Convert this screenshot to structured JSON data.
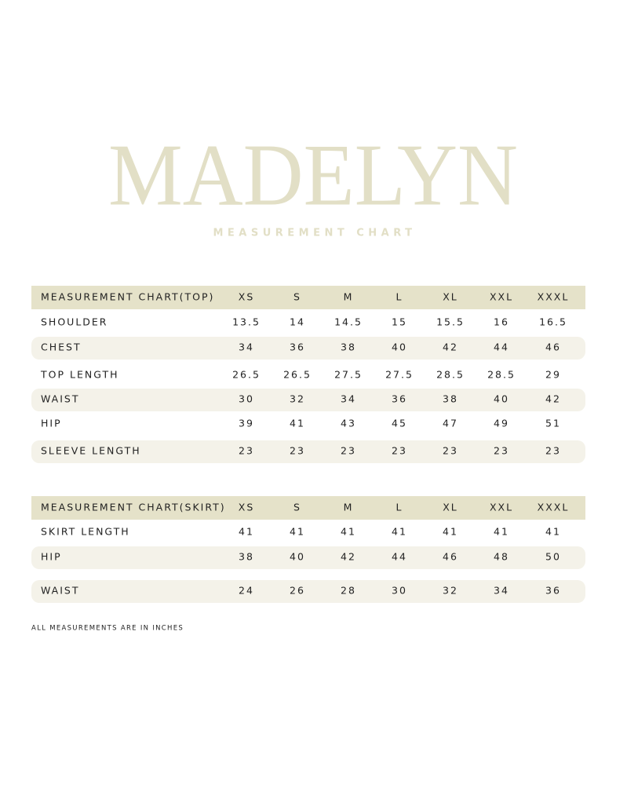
{
  "header": {
    "title": "MADELYN",
    "subtitle": "MEASUREMENT CHART"
  },
  "tables": [
    {
      "columns": [
        "MEASUREMENT CHART(TOP)",
        "XS",
        "S",
        "M",
        "L",
        "XL",
        "XXL",
        "XXXL"
      ],
      "rows": [
        {
          "label": "SHOULDER",
          "values": [
            "13.5",
            "14",
            "14.5",
            "15",
            "15.5",
            "16",
            "16.5"
          ]
        },
        {
          "label": "CHEST",
          "values": [
            "34",
            "36",
            "38",
            "40",
            "42",
            "44",
            "46"
          ]
        },
        {
          "label": "TOP LENGTH",
          "values": [
            "26.5",
            "26.5",
            "27.5",
            "27.5",
            "28.5",
            "28.5",
            "29"
          ]
        },
        {
          "label": "WAIST",
          "values": [
            "30",
            "32",
            "34",
            "36",
            "38",
            "40",
            "42"
          ]
        },
        {
          "label": "HIP",
          "values": [
            "39",
            "41",
            "43",
            "45",
            "47",
            "49",
            "51"
          ]
        },
        {
          "label": "SLEEVE LENGTH",
          "values": [
            "23",
            "23",
            "23",
            "23",
            "23",
            "23",
            "23"
          ]
        }
      ]
    },
    {
      "columns": [
        "MEASUREMENT CHART(SKIRT)",
        "XS",
        "S",
        "M",
        "L",
        "XL",
        "XXL",
        "XXXL"
      ],
      "rows": [
        {
          "label": "SKIRT LENGTH",
          "values": [
            "41",
            "41",
            "41",
            "41",
            "41",
            "41",
            "41"
          ]
        },
        {
          "label": "HIP",
          "values": [
            "38",
            "40",
            "42",
            "44",
            "46",
            "48",
            "50"
          ]
        },
        {
          "label": "WAIST",
          "values": [
            "24",
            "26",
            "28",
            "30",
            "32",
            "34",
            "36"
          ]
        }
      ]
    }
  ],
  "footnote": "ALL MEASUREMENTS ARE IN INCHES"
}
